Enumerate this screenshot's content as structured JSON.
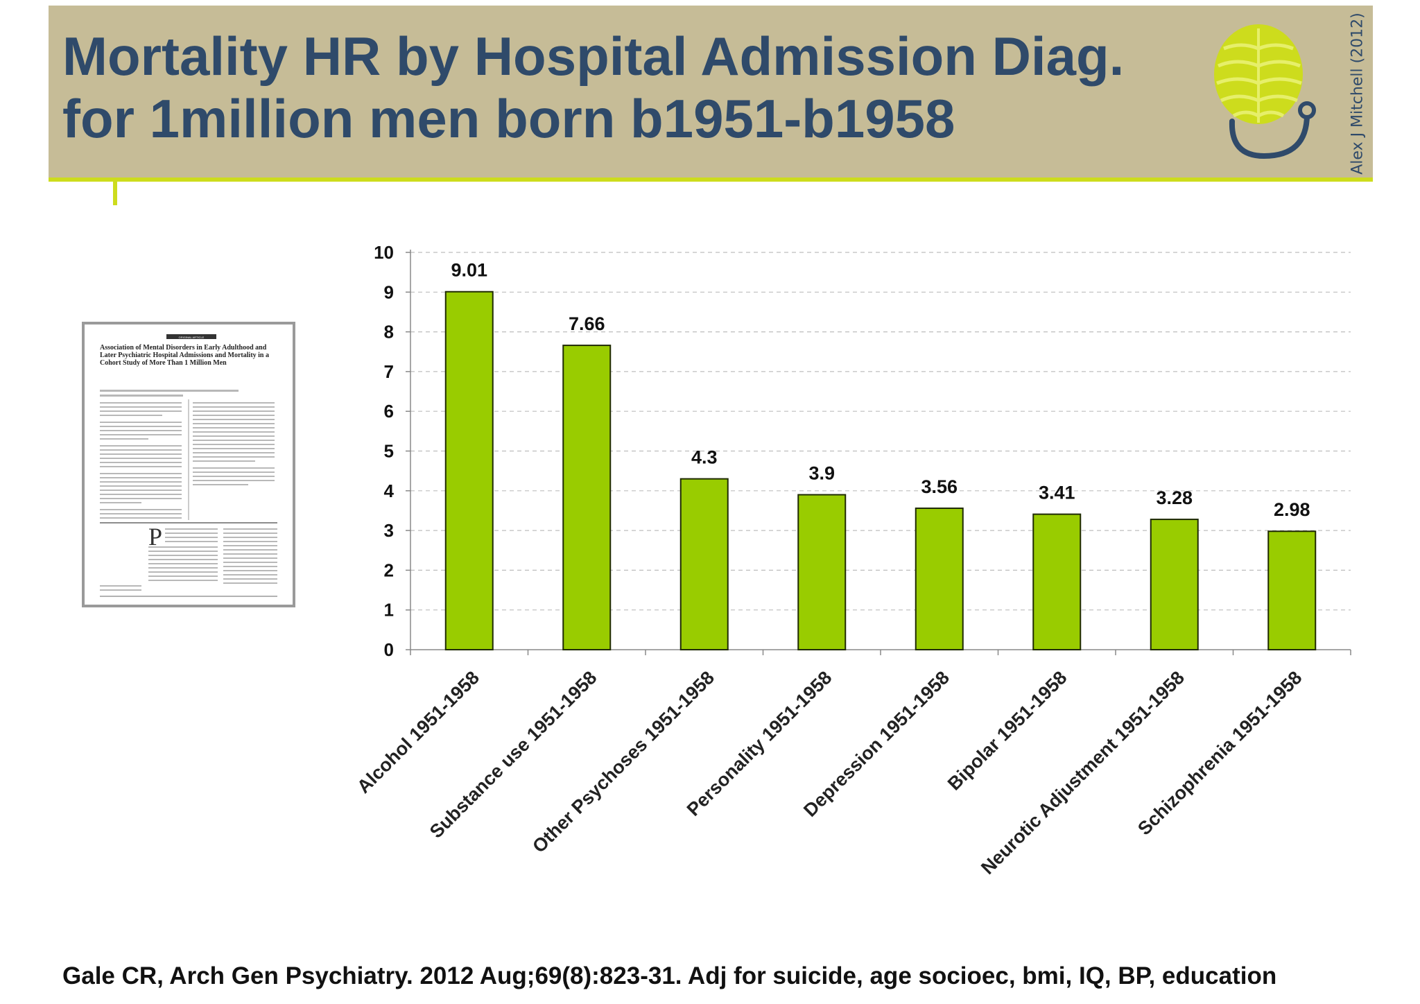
{
  "slide": {
    "title_line1": "Mortality HR by Hospital Admission Diag.",
    "title_line2": "for 1million men born b1951-b1958",
    "author_credit": "Alex J Mitchell (2012)",
    "citation": "Gale CR,  Arch Gen Psychiatry. 2012 Aug;69(8):823-31. Adj for suicide, age socioec, bmi, IQ, BP, education",
    "logo_icon": "stethoscope-brain-logo-icon",
    "colors": {
      "header_band": "#c6bc97",
      "header_accent": "#cddc1d",
      "title_text": "#2f4a6a",
      "bar_fill": "#99cc00",
      "bar_stroke": "#1f2a00"
    }
  },
  "paper": {
    "badge": "ORIGINAL ARTICLE",
    "title": "Association of Mental Disorders in Early Adulthood and Later Psychiatric Hospital Admissions and Mortality in a Cohort Study of More Than 1 Million Men"
  },
  "chart_data": {
    "type": "bar",
    "categories": [
      "Alcohol 1951-1958",
      "Substance use 1951-1958",
      "Other Psychoses 1951-1958",
      "Personality 1951-1958",
      "Depression 1951-1958",
      "Bipolar 1951-1958",
      "Neurotic Adjustment 1951-1958",
      "Schizophrenia 1951-1958"
    ],
    "values": [
      9.01,
      7.66,
      4.3,
      3.9,
      3.56,
      3.41,
      3.28,
      2.98
    ],
    "value_labels": [
      "9.01",
      "7.66",
      "4.3",
      "3.9",
      "3.56",
      "3.41",
      "3.28",
      "2.98"
    ],
    "yticks": [
      "0",
      "1",
      "2",
      "3",
      "4",
      "5",
      "6",
      "7",
      "8",
      "9",
      "10"
    ],
    "ylim": [
      0,
      10
    ],
    "xlabel": "",
    "ylabel": "",
    "grid": "horizontal dashed",
    "legend": "none"
  }
}
